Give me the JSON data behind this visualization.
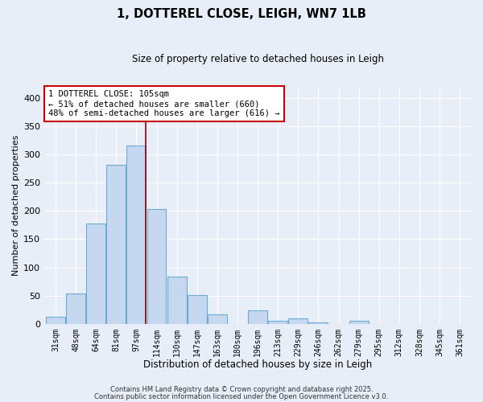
{
  "title": "1, DOTTEREL CLOSE, LEIGH, WN7 1LB",
  "subtitle": "Size of property relative to detached houses in Leigh",
  "xlabel": "Distribution of detached houses by size in Leigh",
  "ylabel": "Number of detached properties",
  "bar_labels": [
    "31sqm",
    "48sqm",
    "64sqm",
    "81sqm",
    "97sqm",
    "114sqm",
    "130sqm",
    "147sqm",
    "163sqm",
    "180sqm",
    "196sqm",
    "213sqm",
    "229sqm",
    "246sqm",
    "262sqm",
    "279sqm",
    "295sqm",
    "312sqm",
    "328sqm",
    "345sqm",
    "361sqm"
  ],
  "bar_values": [
    13,
    54,
    178,
    282,
    316,
    203,
    84,
    51,
    16,
    0,
    24,
    5,
    9,
    3,
    0,
    5,
    0,
    0,
    0,
    0,
    0
  ],
  "bar_color": "#c5d8f0",
  "bar_edge_color": "#6aaad4",
  "ylim": [
    0,
    420
  ],
  "yticks": [
    0,
    50,
    100,
    150,
    200,
    250,
    300,
    350,
    400
  ],
  "property_line_color": "#8b0000",
  "annotation_text": "1 DOTTEREL CLOSE: 105sqm\n← 51% of detached houses are smaller (660)\n48% of semi-detached houses are larger (616) →",
  "annotation_box_color": "#ffffff",
  "annotation_box_edge_color": "#cc0000",
  "footer_line1": "Contains HM Land Registry data © Crown copyright and database right 2025.",
  "footer_line2": "Contains public sector information licensed under the Open Government Licence v3.0.",
  "background_color": "#e8eef8",
  "plot_bg_color": "#e8eef8",
  "grid_color": "#ffffff"
}
